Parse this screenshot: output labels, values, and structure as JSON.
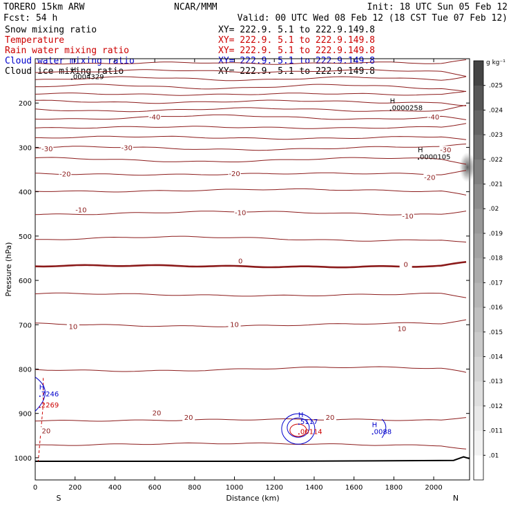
{
  "header": {
    "model": "TORERO  15km ARW",
    "center": "NCAR/MMM",
    "init": "Init: 18 UTC Sun 05 Feb 12",
    "fcst": "Fcst:   54 h",
    "valid": "Valid: 00 UTC Wed 08 Feb 12 (18 CST Tue 07 Feb 12)"
  },
  "fields": [
    {
      "name": "Snow mixing ratio",
      "xy": "XY= 222.9.  5.1 to 222.9.149.8",
      "color": "#000000"
    },
    {
      "name": "Temperature",
      "xy": "XY= 222.9.  5.1 to 222.9.149.8",
      "color": "#cc0000"
    },
    {
      "name": "Rain water mixing ratio",
      "xy": "XY= 222.9.  5.1 to 222.9.149.8",
      "color": "#cc0000"
    },
    {
      "name": "Cloud water mixing ratio",
      "xy": "XY= 222.9.  5.1 to 222.9.149.8",
      "color": "#0000cc"
    },
    {
      "name": "Cloud ice mixing ratio",
      "xy": "XY= 222.9.  5.1 to 222.9.149.8",
      "color": "#000000"
    }
  ],
  "chart_data": {
    "type": "contour",
    "xlabel": "Distance (km)",
    "ylabel": "Pressure (hPa)",
    "xlim": [
      0,
      2180
    ],
    "ylim": [
      1050,
      100
    ],
    "x_ticks": [
      0,
      200,
      400,
      600,
      800,
      1000,
      1200,
      1400,
      1600,
      1800,
      2000
    ],
    "y_ticks": [
      200,
      300,
      400,
      500,
      600,
      700,
      800,
      900,
      1000
    ],
    "x_end_labels": {
      "left": "S",
      "right": "N"
    },
    "temperature_contours": [
      {
        "p": 110,
        "v": null
      },
      {
        "p": 128,
        "v": null
      },
      {
        "p": 145,
        "v": null
      },
      {
        "p": 163,
        "v": null
      },
      {
        "p": 180,
        "v": null
      },
      {
        "p": 197,
        "v": null
      },
      {
        "p": 215,
        "v": null
      },
      {
        "p": 232,
        "v": -40
      },
      {
        "p": 255,
        "v": null
      },
      {
        "p": 278,
        "v": null
      },
      {
        "p": 302,
        "v": -30
      },
      {
        "p": 328,
        "v": null
      },
      {
        "p": 360,
        "v": -20
      },
      {
        "p": 397,
        "v": null
      },
      {
        "p": 448,
        "v": -10
      },
      {
        "p": 506,
        "v": null
      },
      {
        "p": 568,
        "v": 0
      },
      {
        "p": 632,
        "v": null
      },
      {
        "p": 700,
        "v": 10
      },
      {
        "p": 800,
        "v": null
      },
      {
        "p": 915,
        "v": 20
      },
      {
        "p": 970,
        "v": null
      }
    ],
    "contour_labels": [
      {
        "x": 600,
        "p": 232,
        "t": "-40"
      },
      {
        "x": 2000,
        "p": 232,
        "t": "-40"
      },
      {
        "x": 60,
        "p": 304,
        "t": "-30"
      },
      {
        "x": 460,
        "p": 302,
        "t": "-30"
      },
      {
        "x": 2060,
        "p": 306,
        "t": "-30"
      },
      {
        "x": 150,
        "p": 361,
        "t": "-20"
      },
      {
        "x": 1000,
        "p": 360,
        "t": "-20"
      },
      {
        "x": 1980,
        "p": 369,
        "t": "-20"
      },
      {
        "x": 230,
        "p": 442,
        "t": "-10"
      },
      {
        "x": 1030,
        "p": 448,
        "t": "-10"
      },
      {
        "x": 1870,
        "p": 456,
        "t": "-10"
      },
      {
        "x": 1030,
        "p": 557,
        "t": "0"
      },
      {
        "x": 1860,
        "p": 565,
        "t": "0"
      },
      {
        "x": 190,
        "p": 705,
        "t": "10"
      },
      {
        "x": 1000,
        "p": 700,
        "t": "10"
      },
      {
        "x": 1840,
        "p": 710,
        "t": "10"
      },
      {
        "x": 610,
        "p": 900,
        "t": "20"
      },
      {
        "x": 770,
        "p": 910,
        "t": "20"
      },
      {
        "x": 1480,
        "p": 910,
        "t": "20"
      },
      {
        "x": 55,
        "p": 940,
        "t": "20"
      }
    ],
    "max_markers": [
      {
        "x": 180,
        "p": 140,
        "label": "0004329",
        "color": "#000000",
        "marker": "H"
      },
      {
        "x": 1780,
        "p": 210,
        "label": "0000258",
        "color": "#000000",
        "marker": "H"
      },
      {
        "x": 1920,
        "p": 320,
        "label": "0000105",
        "color": "#000000",
        "marker": "H"
      },
      {
        "x": 20,
        "p": 855,
        "label": "7246",
        "color": "#0000cc",
        "marker": "H"
      },
      {
        "x": 20,
        "p": 880,
        "label": "2269",
        "color": "#cc0000",
        "marker": ""
      },
      {
        "x": 1320,
        "p": 918,
        "label": "5117",
        "color": "#0000cc",
        "marker": "H"
      },
      {
        "x": 1320,
        "p": 940,
        "label": "00114",
        "color": "#cc0000",
        "marker": ""
      },
      {
        "x": 1690,
        "p": 940,
        "label": "0088",
        "color": "#0000cc",
        "marker": "H"
      }
    ],
    "colorbar": {
      "unit": "g kg⁻¹",
      "ticks": [
        ".01",
        ".011",
        ".012",
        ".013",
        ".014",
        ".015",
        ".016",
        ".017",
        ".018",
        ".019",
        ".02",
        ".021",
        ".022",
        ".023",
        ".024",
        ".025"
      ],
      "colors": [
        "#ffffff",
        "#f2f2f2",
        "#e8e8e8",
        "#dedede",
        "#d4d4d4",
        "#cacaca",
        "#c0c0c0",
        "#b6b6b6",
        "#acacac",
        "#a2a2a2",
        "#989898",
        "#8c8c8c",
        "#808080",
        "#727272",
        "#646464",
        "#565656",
        "#444444"
      ]
    }
  }
}
